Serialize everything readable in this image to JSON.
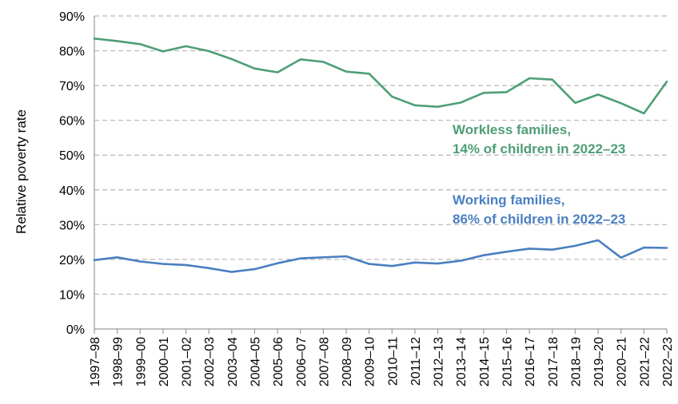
{
  "chart_data": {
    "type": "line",
    "title": "",
    "xlabel": "",
    "ylabel": "Relative poverty rate",
    "ylim": [
      0,
      90
    ],
    "yticks": [
      0,
      10,
      20,
      30,
      40,
      50,
      60,
      70,
      80,
      90
    ],
    "ytick_labels": [
      "0%",
      "10%",
      "20%",
      "30%",
      "40%",
      "50%",
      "60%",
      "70%",
      "80%",
      "90%"
    ],
    "grid": true,
    "categories": [
      "1997–98",
      "1998–99",
      "1999–00",
      "2000–01",
      "2001–02",
      "2002–03",
      "2003–04",
      "2004–05",
      "2005–06",
      "2006–07",
      "2007–08",
      "2008–09",
      "2009–10",
      "2010–11",
      "2011–12",
      "2012–13",
      "2013–14",
      "2014–15",
      "2015–16",
      "2016–17",
      "2017–18",
      "2018–19",
      "2019–20",
      "2020–21",
      "2021–22",
      "2022–23"
    ],
    "series": [
      {
        "name": "Workless families",
        "color": "#4e9e76",
        "values": [
          83.5,
          82.8,
          81.9,
          79.8,
          81.3,
          79.9,
          77.6,
          74.9,
          73.8,
          77.5,
          76.8,
          74.0,
          73.4,
          66.8,
          64.3,
          63.9,
          65.1,
          67.9,
          68.1,
          72.1,
          71.7,
          65.0,
          67.4,
          64.9,
          62.0,
          71.1
        ],
        "annotation": [
          "Workless families,",
          "14% of children in 2022–23"
        ]
      },
      {
        "name": "Working families",
        "color": "#4a7fc1",
        "values": [
          19.8,
          20.6,
          19.4,
          18.7,
          18.4,
          17.5,
          16.4,
          17.2,
          18.9,
          20.3,
          20.6,
          20.9,
          18.7,
          18.1,
          19.1,
          18.8,
          19.6,
          21.2,
          22.2,
          23.1,
          22.8,
          23.9,
          25.5,
          20.5,
          23.4,
          23.3
        ],
        "annotation": [
          "Working families,",
          "86% of children in 2022–23"
        ]
      }
    ]
  }
}
